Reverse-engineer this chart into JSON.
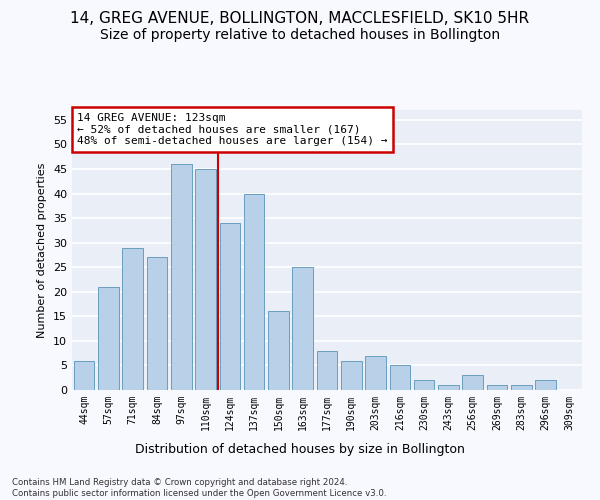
{
  "title": "14, GREG AVENUE, BOLLINGTON, MACCLESFIELD, SK10 5HR",
  "subtitle": "Size of property relative to detached houses in Bollington",
  "xlabel": "Distribution of detached houses by size in Bollington",
  "ylabel": "Number of detached properties",
  "categories": [
    "44sqm",
    "57sqm",
    "71sqm",
    "84sqm",
    "97sqm",
    "110sqm",
    "124sqm",
    "137sqm",
    "150sqm",
    "163sqm",
    "177sqm",
    "190sqm",
    "203sqm",
    "216sqm",
    "230sqm",
    "243sqm",
    "256sqm",
    "269sqm",
    "283sqm",
    "296sqm",
    "309sqm"
  ],
  "values": [
    6,
    21,
    29,
    27,
    46,
    45,
    34,
    40,
    16,
    25,
    8,
    6,
    7,
    5,
    2,
    1,
    3,
    1,
    1,
    2,
    0
  ],
  "bar_color": "#b8d0e8",
  "bar_edge_color": "#6a9ec0",
  "highlight_line_color": "#cc0000",
  "annotation_text": "14 GREG AVENUE: 123sqm\n← 52% of detached houses are smaller (167)\n48% of semi-detached houses are larger (154) →",
  "annotation_box_facecolor": "#ffffff",
  "annotation_box_edgecolor": "#cc0000",
  "ylim": [
    0,
    57
  ],
  "yticks": [
    0,
    5,
    10,
    15,
    20,
    25,
    30,
    35,
    40,
    45,
    50,
    55
  ],
  "plot_bg_color": "#eaeef6",
  "fig_bg_color": "#f8f8ff",
  "grid_color": "#ffffff",
  "footer_line1": "Contains HM Land Registry data © Crown copyright and database right 2024.",
  "footer_line2": "Contains public sector information licensed under the Open Government Licence v3.0.",
  "title_fontsize": 11,
  "subtitle_fontsize": 10,
  "highlight_bar_index": 6
}
